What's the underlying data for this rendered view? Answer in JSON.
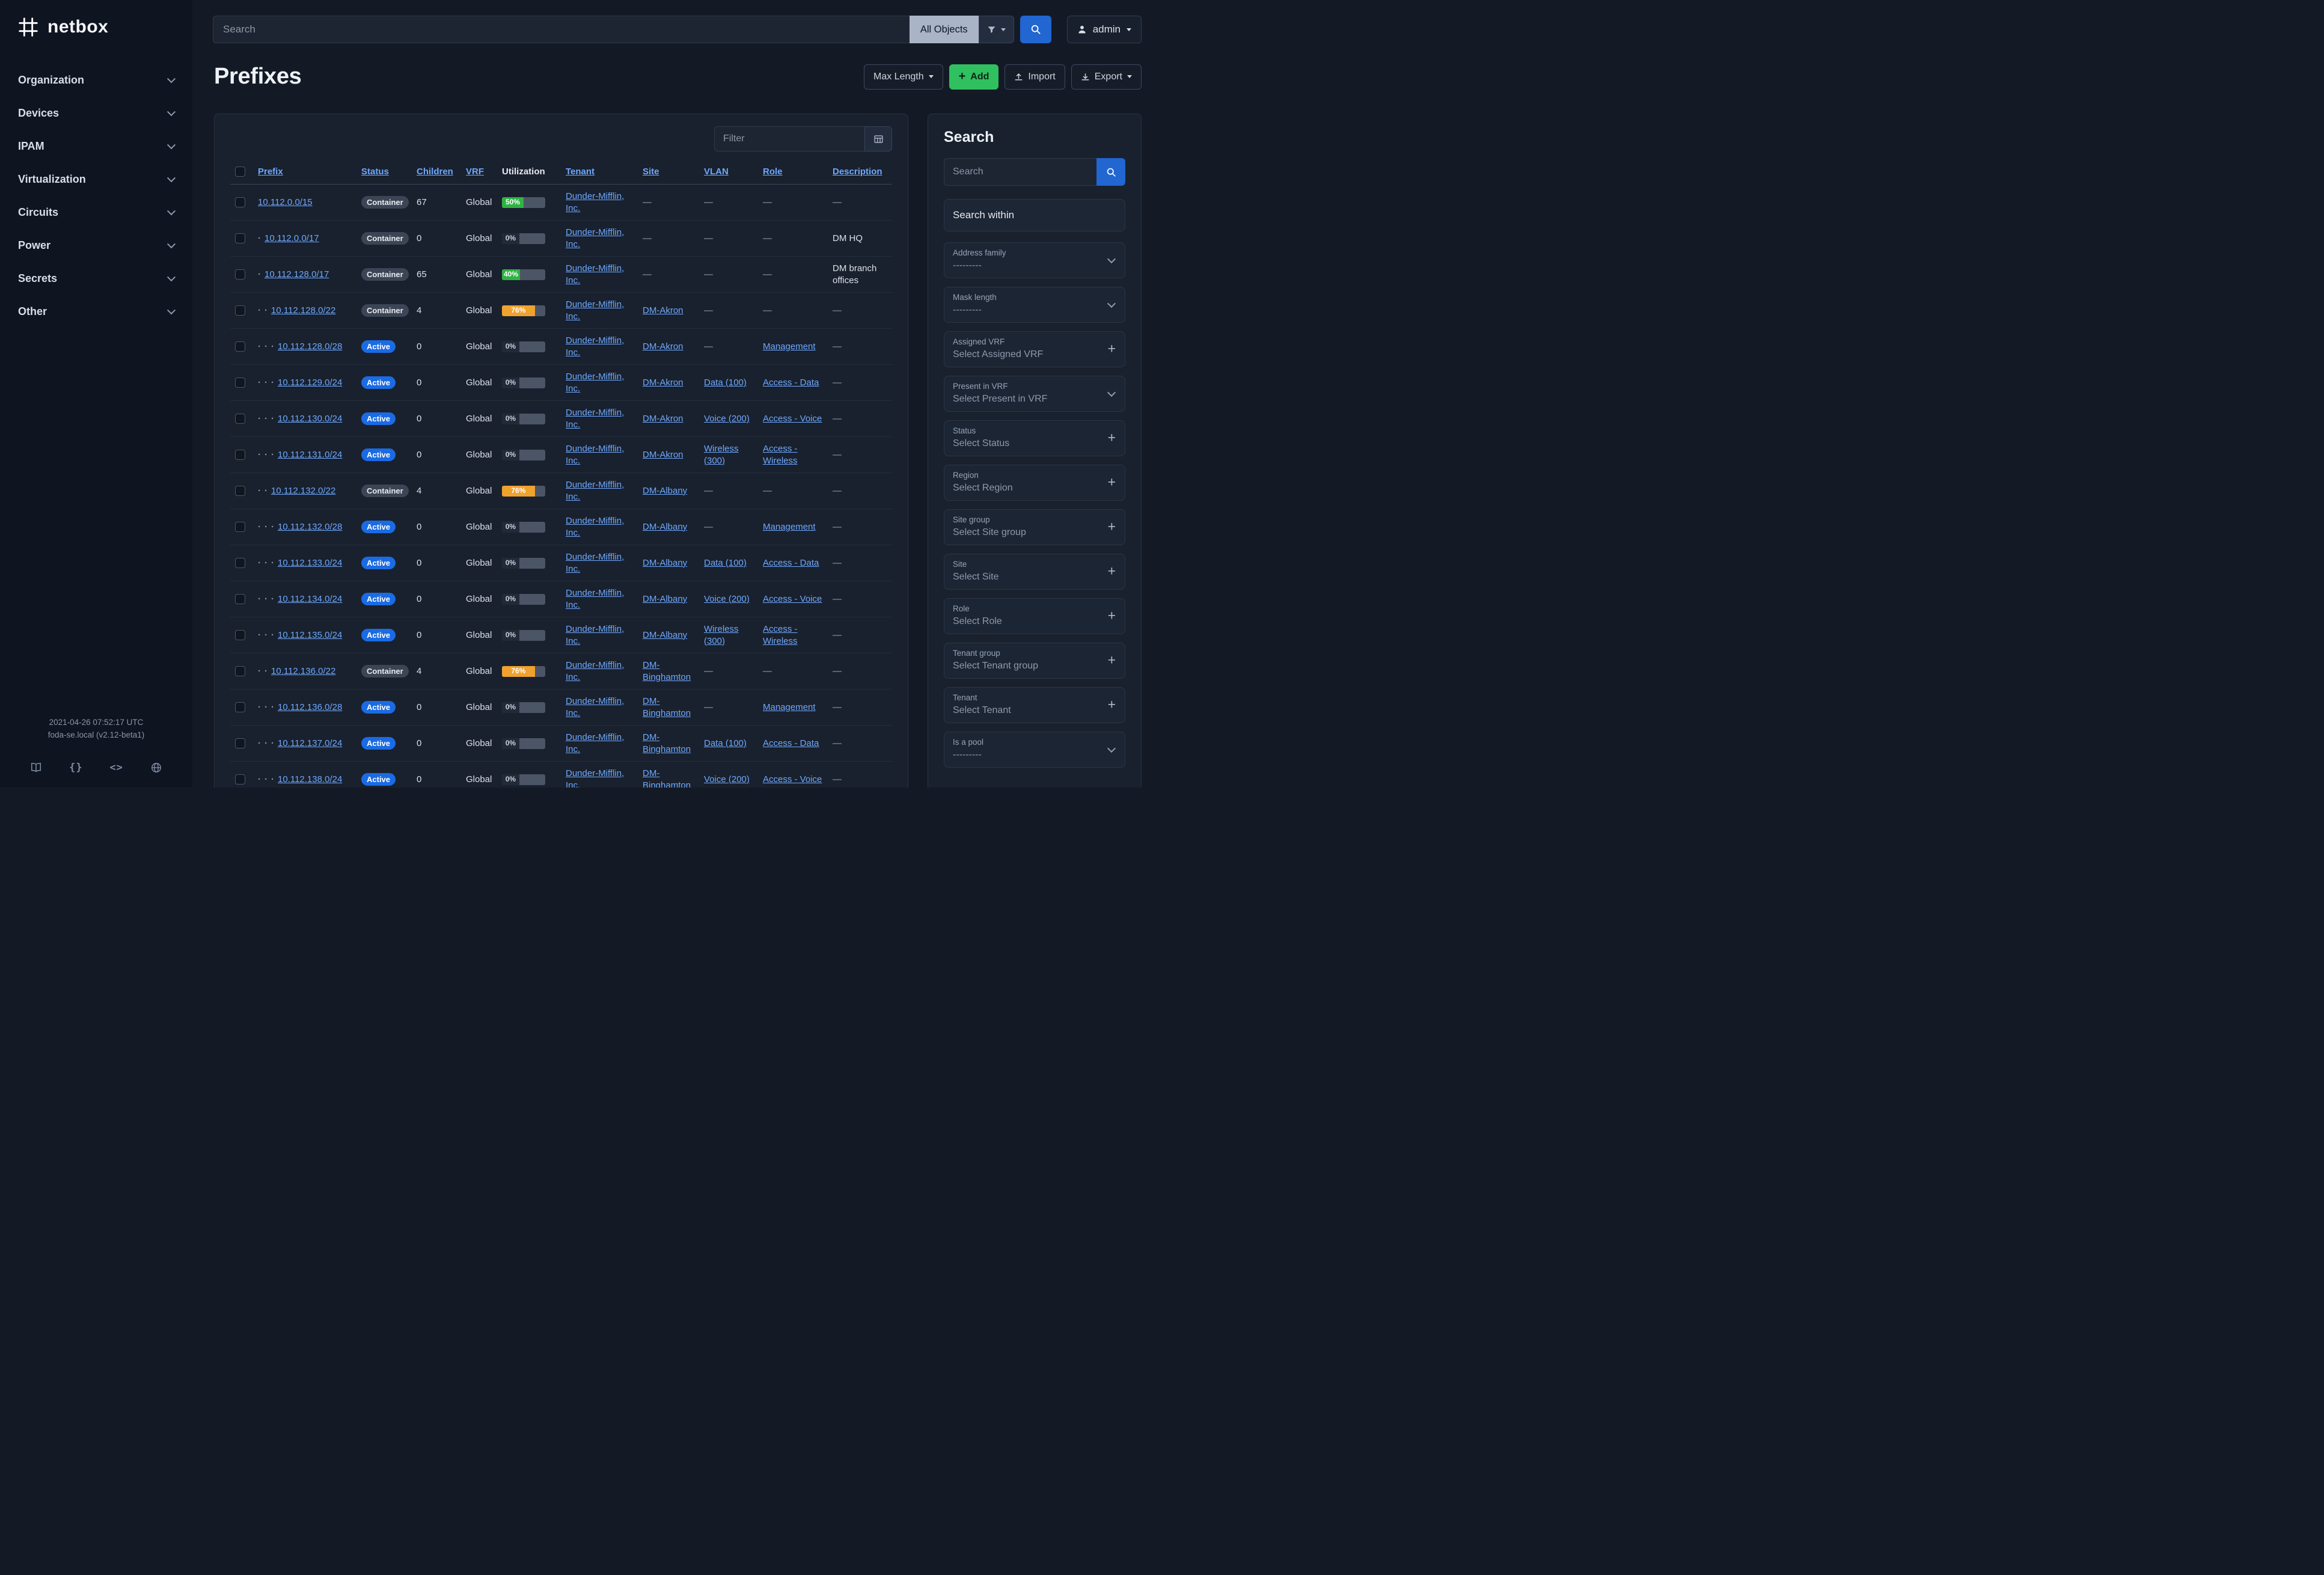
{
  "brand": {
    "name": "netbox"
  },
  "colors": {
    "link_blue": "#6ea8fe",
    "add_green": "#30c05f",
    "search_blue": "#2166d1",
    "util_green": "#2fb344",
    "util_amber": "#f0a22e",
    "badge_active": "#1a6be4",
    "badge_container": "#3c4555"
  },
  "topbar": {
    "search_placeholder": "Search",
    "scope_label": "All Objects",
    "user_label": "admin"
  },
  "sidebar": {
    "items": [
      {
        "label": "Organization"
      },
      {
        "label": "Devices"
      },
      {
        "label": "IPAM"
      },
      {
        "label": "Virtualization"
      },
      {
        "label": "Circuits"
      },
      {
        "label": "Power"
      },
      {
        "label": "Secrets"
      },
      {
        "label": "Other"
      }
    ],
    "footer": {
      "timestamp": "2021-04-26 07:52:17 UTC",
      "version": "foda-se.local (v2.12-beta1)"
    }
  },
  "page": {
    "title": "Prefixes",
    "actions": {
      "max_length": "Max Length",
      "add": "Add",
      "import": "Import",
      "export": "Export"
    }
  },
  "table": {
    "filter_placeholder": "Filter",
    "columns": [
      {
        "label": "Prefix",
        "sortable": true
      },
      {
        "label": "Status",
        "sortable": true
      },
      {
        "label": "Children",
        "sortable": true
      },
      {
        "label": "VRF",
        "sortable": true
      },
      {
        "label": "Utilization",
        "sortable": false
      },
      {
        "label": "Tenant",
        "sortable": true
      },
      {
        "label": "Site",
        "sortable": true
      },
      {
        "label": "VLAN",
        "sortable": true
      },
      {
        "label": "Role",
        "sortable": true
      },
      {
        "label": "Description",
        "sortable": true
      }
    ],
    "empty_placeholder": "—",
    "rows": [
      {
        "depth": 0,
        "prefix": "10.112.0.0/15",
        "status": "Container",
        "children": 67,
        "vrf": "Global",
        "utilization": 50,
        "tenant": "Dunder-Mifflin, Inc.",
        "site": null,
        "vlan": null,
        "role": null,
        "description": null
      },
      {
        "depth": 1,
        "prefix": "10.112.0.0/17",
        "status": "Container",
        "children": 0,
        "vrf": "Global",
        "utilization": 0,
        "tenant": "Dunder-Mifflin, Inc.",
        "site": null,
        "vlan": null,
        "role": null,
        "description": "DM HQ"
      },
      {
        "depth": 1,
        "prefix": "10.112.128.0/17",
        "status": "Container",
        "children": 65,
        "vrf": "Global",
        "utilization": 40,
        "tenant": "Dunder-Mifflin, Inc.",
        "site": null,
        "vlan": null,
        "role": null,
        "description": "DM branch offices"
      },
      {
        "depth": 2,
        "prefix": "10.112.128.0/22",
        "status": "Container",
        "children": 4,
        "vrf": "Global",
        "utilization": 76,
        "tenant": "Dunder-Mifflin, Inc.",
        "site": "DM-Akron",
        "vlan": null,
        "role": null,
        "description": null
      },
      {
        "depth": 3,
        "prefix": "10.112.128.0/28",
        "status": "Active",
        "children": 0,
        "vrf": "Global",
        "utilization": 0,
        "tenant": "Dunder-Mifflin, Inc.",
        "site": "DM-Akron",
        "vlan": null,
        "role": "Management",
        "description": null
      },
      {
        "depth": 3,
        "prefix": "10.112.129.0/24",
        "status": "Active",
        "children": 0,
        "vrf": "Global",
        "utilization": 0,
        "tenant": "Dunder-Mifflin, Inc.",
        "site": "DM-Akron",
        "vlan": "Data (100)",
        "role": "Access - Data",
        "description": null
      },
      {
        "depth": 3,
        "prefix": "10.112.130.0/24",
        "status": "Active",
        "children": 0,
        "vrf": "Global",
        "utilization": 0,
        "tenant": "Dunder-Mifflin, Inc.",
        "site": "DM-Akron",
        "vlan": "Voice (200)",
        "role": "Access - Voice",
        "description": null
      },
      {
        "depth": 3,
        "prefix": "10.112.131.0/24",
        "status": "Active",
        "children": 0,
        "vrf": "Global",
        "utilization": 0,
        "tenant": "Dunder-Mifflin, Inc.",
        "site": "DM-Akron",
        "vlan": "Wireless (300)",
        "role": "Access - Wireless",
        "description": null
      },
      {
        "depth": 2,
        "prefix": "10.112.132.0/22",
        "status": "Container",
        "children": 4,
        "vrf": "Global",
        "utilization": 76,
        "tenant": "Dunder-Mifflin, Inc.",
        "site": "DM-Albany",
        "vlan": null,
        "role": null,
        "description": null
      },
      {
        "depth": 3,
        "prefix": "10.112.132.0/28",
        "status": "Active",
        "children": 0,
        "vrf": "Global",
        "utilization": 0,
        "tenant": "Dunder-Mifflin, Inc.",
        "site": "DM-Albany",
        "vlan": null,
        "role": "Management",
        "description": null
      },
      {
        "depth": 3,
        "prefix": "10.112.133.0/24",
        "status": "Active",
        "children": 0,
        "vrf": "Global",
        "utilization": 0,
        "tenant": "Dunder-Mifflin, Inc.",
        "site": "DM-Albany",
        "vlan": "Data (100)",
        "role": "Access - Data",
        "description": null
      },
      {
        "depth": 3,
        "prefix": "10.112.134.0/24",
        "status": "Active",
        "children": 0,
        "vrf": "Global",
        "utilization": 0,
        "tenant": "Dunder-Mifflin, Inc.",
        "site": "DM-Albany",
        "vlan": "Voice (200)",
        "role": "Access - Voice",
        "description": null
      },
      {
        "depth": 3,
        "prefix": "10.112.135.0/24",
        "status": "Active",
        "children": 0,
        "vrf": "Global",
        "utilization": 0,
        "tenant": "Dunder-Mifflin, Inc.",
        "site": "DM-Albany",
        "vlan": "Wireless (300)",
        "role": "Access - Wireless",
        "description": null
      },
      {
        "depth": 2,
        "prefix": "10.112.136.0/22",
        "status": "Container",
        "children": 4,
        "vrf": "Global",
        "utilization": 76,
        "tenant": "Dunder-Mifflin, Inc.",
        "site": "DM-Binghamton",
        "vlan": null,
        "role": null,
        "description": null
      },
      {
        "depth": 3,
        "prefix": "10.112.136.0/28",
        "status": "Active",
        "children": 0,
        "vrf": "Global",
        "utilization": 0,
        "tenant": "Dunder-Mifflin, Inc.",
        "site": "DM-Binghamton",
        "vlan": null,
        "role": "Management",
        "description": null
      },
      {
        "depth": 3,
        "prefix": "10.112.137.0/24",
        "status": "Active",
        "children": 0,
        "vrf": "Global",
        "utilization": 0,
        "tenant": "Dunder-Mifflin, Inc.",
        "site": "DM-Binghamton",
        "vlan": "Data (100)",
        "role": "Access - Data",
        "description": null
      },
      {
        "depth": 3,
        "prefix": "10.112.138.0/24",
        "status": "Active",
        "children": 0,
        "vrf": "Global",
        "utilization": 0,
        "tenant": "Dunder-Mifflin, Inc.",
        "site": "DM-Binghamton",
        "vlan": "Voice (200)",
        "role": "Access - Voice",
        "description": null
      }
    ]
  },
  "filters_panel": {
    "title": "Search",
    "search_placeholder": "Search",
    "search_within_label": "Search within",
    "fields": [
      {
        "label": "Address family",
        "value": "---------",
        "control": "select"
      },
      {
        "label": "Mask length",
        "value": "---------",
        "control": "select"
      },
      {
        "label": "Assigned VRF",
        "value": "Select Assigned VRF",
        "control": "plus"
      },
      {
        "label": "Present in VRF",
        "value": "Select Present in VRF",
        "control": "select"
      },
      {
        "label": "Status",
        "value": "Select Status",
        "control": "plus"
      },
      {
        "label": "Region",
        "value": "Select Region",
        "control": "plus"
      },
      {
        "label": "Site group",
        "value": "Select Site group",
        "control": "plus"
      },
      {
        "label": "Site",
        "value": "Select Site",
        "control": "plus"
      },
      {
        "label": "Role",
        "value": "Select Role",
        "control": "plus"
      },
      {
        "label": "Tenant group",
        "value": "Select Tenant group",
        "control": "plus"
      },
      {
        "label": "Tenant",
        "value": "Select Tenant",
        "control": "plus"
      },
      {
        "label": "Is a pool",
        "value": "---------",
        "control": "select"
      }
    ]
  }
}
